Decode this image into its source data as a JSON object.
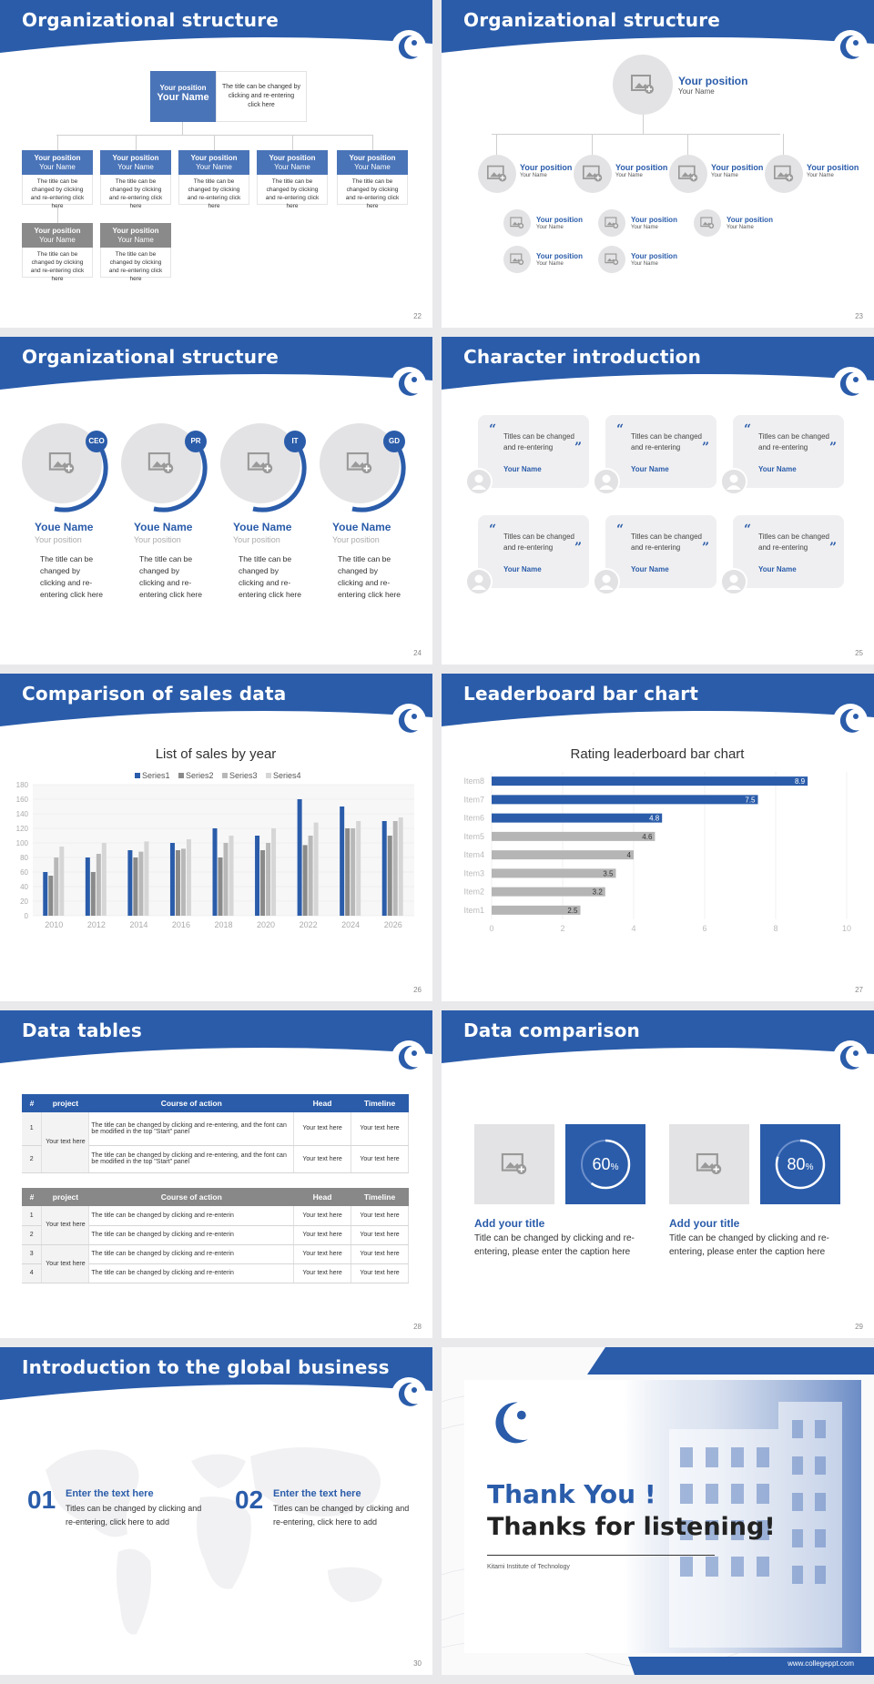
{
  "colors": {
    "brand": "#2a5caa",
    "light_blue": "#4a74b8",
    "gray": "#8a8a8a",
    "circle_gray": "#e3e3e5"
  },
  "slide1": {
    "title": "Organizational structure",
    "page": "22",
    "top": {
      "position": "Your position",
      "name": "Your Name",
      "desc": "The title can be changed by clicking and re-entering click here"
    },
    "boxes": [
      {
        "position": "Your position",
        "name": "Your Name",
        "desc": "The title can be changed by clicking and re-entering click here"
      },
      {
        "position": "Your position",
        "name": "Your Name",
        "desc": "The title can be changed by clicking and re-entering click here"
      },
      {
        "position": "Your position",
        "name": "Your Name",
        "desc": "The title can be changed by clicking and re-entering click here"
      },
      {
        "position": "Your position",
        "name": "Your Name",
        "desc": "The title can be changed by clicking and re-entering click here"
      },
      {
        "position": "Your position",
        "name": "Your Name",
        "desc": "The title can be changed by clicking and re-entering click here"
      },
      {
        "position": "Your position",
        "name": "Your Name",
        "desc": "The title can be changed by clicking and re-entering click here"
      },
      {
        "position": "Your position",
        "name": "Your Name",
        "desc": "The title can be changed by clicking and re-entering click here"
      }
    ]
  },
  "slide2": {
    "title": "Organizational structure",
    "page": "23",
    "top": {
      "position": "Your position",
      "name": "Your Name"
    },
    "level2": [
      {
        "position": "Your position",
        "name": "Your Name"
      },
      {
        "position": "Your position",
        "name": "Your Name"
      },
      {
        "position": "Your position",
        "name": "Your Name"
      },
      {
        "position": "Your position",
        "name": "Your Name"
      }
    ],
    "level3": [
      {
        "position": "Your position",
        "name": "Your Name"
      },
      {
        "position": "Your position",
        "name": "Your Name"
      },
      {
        "position": "Your position",
        "name": "Your Name"
      },
      {
        "position": "Your position",
        "name": "Your Name"
      },
      {
        "position": "Your position",
        "name": "Your Name"
      }
    ]
  },
  "slide3": {
    "title": "Organizational structure",
    "page": "24",
    "people": [
      {
        "badge": "CEO",
        "name": "Youe Name",
        "position": "Your position",
        "desc": "The title can be changed by clicking and re-entering click here"
      },
      {
        "badge": "PR",
        "name": "Youe Name",
        "position": "Your position",
        "desc": "The title can be changed by clicking and re-entering click here"
      },
      {
        "badge": "IT",
        "name": "Youe Name",
        "position": "Your position",
        "desc": "The title can be changed by clicking and re-entering click here"
      },
      {
        "badge": "GD",
        "name": "Youe Name",
        "position": "Your position",
        "desc": "The title can be changed by clicking and re-entering click here"
      }
    ]
  },
  "slide4": {
    "title": "Character introduction",
    "page": "25",
    "cards": [
      {
        "text": "Titles can be changed and re-entering",
        "name": "Your Name"
      },
      {
        "text": "Titles can be changed and re-entering",
        "name": "Your Name"
      },
      {
        "text": "Titles can be changed and re-entering",
        "name": "Your Name"
      },
      {
        "text": "Titles can be changed and re-entering",
        "name": "Your Name"
      },
      {
        "text": "Titles can be changed and re-entering",
        "name": "Your Name"
      },
      {
        "text": "Titles can be changed and re-entering",
        "name": "Your Name"
      }
    ]
  },
  "slide5": {
    "title": "Comparison of sales data",
    "page": "26"
  },
  "slide6": {
    "title": "Leaderboard bar chart",
    "page": "27"
  },
  "slide7": {
    "title": "Data tables",
    "page": "28",
    "table1": {
      "headers": [
        "#",
        "project",
        "Course of action",
        "Head",
        "Timeline"
      ],
      "project": "Your text here",
      "rows": [
        {
          "n": "1",
          "action": "The title can be changed by clicking and re-entering, and the font can be modified in the top \"Start\" panel",
          "head": "Your text here",
          "timeline": "Your text here"
        },
        {
          "n": "2",
          "action": "The title can be changed by clicking and re-entering, and the font can be modified in the top \"Start\" panel",
          "head": "Your text here",
          "timeline": "Your text here"
        }
      ]
    },
    "table2": {
      "headers": [
        "#",
        "project",
        "Course of action",
        "Head",
        "Timeline"
      ],
      "project_a": "Your text here",
      "project_b": "Your text here",
      "rows": [
        {
          "n": "1",
          "action": "The title can be changed by clicking and re-enterin",
          "head": "Your text here",
          "timeline": "Your text here"
        },
        {
          "n": "2",
          "action": "The title can be changed by clicking and re-enterin",
          "head": "Your text here",
          "timeline": "Your text here"
        },
        {
          "n": "3",
          "action": "The title can be changed by clicking and re-enterin",
          "head": "Your text here",
          "timeline": "Your text here"
        },
        {
          "n": "4",
          "action": "The title can be changed by clicking and re-enterin",
          "head": "Your text here",
          "timeline": "Your text here"
        }
      ]
    }
  },
  "slide8": {
    "title": "Data comparison",
    "page": "29",
    "items": [
      {
        "percent": "60",
        "unit": "%",
        "title": "Add your title",
        "text": "Title can be changed by clicking and re-entering, please enter the caption here"
      },
      {
        "percent": "80",
        "unit": "%",
        "title": "Add your title",
        "text": "Title can be changed by clicking and re-entering, please enter the caption here"
      }
    ]
  },
  "slide9": {
    "title": "Introduction to the global business",
    "page": "30",
    "items": [
      {
        "num": "01",
        "title": "Enter the text here",
        "text": "Titles can be changed by clicking and re-entering, click here to add"
      },
      {
        "num": "02",
        "title": "Enter the text here",
        "text": "Titles can be changed by clicking and re-entering, click here to add"
      }
    ]
  },
  "slide10": {
    "line1": "Thank You !",
    "line2": "Thanks for listening!",
    "institute": "Kitami Institute of Technology",
    "url": "www.collegeppt.com"
  },
  "chart_data": [
    {
      "type": "bar",
      "title": "List of sales by year",
      "categories": [
        "2010",
        "2012",
        "2014",
        "2016",
        "2018",
        "2020",
        "2022",
        "2024",
        "2026"
      ],
      "ylim": [
        0,
        180
      ],
      "yticks": [
        "0",
        "20",
        "40",
        "60",
        "80",
        "100",
        "120",
        "140",
        "160",
        "180"
      ],
      "series": [
        {
          "name": "Series1",
          "color": "#2a5caa",
          "values": [
            60,
            80,
            90,
            100,
            120,
            110,
            160,
            150,
            130
          ]
        },
        {
          "name": "Series2",
          "color": "#8a8a8a",
          "values": [
            55,
            60,
            80,
            90,
            80,
            90,
            97,
            120,
            110
          ]
        },
        {
          "name": "Series3",
          "color": "#b8b8b8",
          "values": [
            80,
            85,
            88,
            92,
            100,
            100,
            110,
            120,
            130
          ]
        },
        {
          "name": "Series4",
          "color": "#d6d6d6",
          "values": [
            95,
            100,
            102,
            105,
            110,
            120,
            128,
            130,
            135
          ]
        }
      ],
      "legend": "top"
    },
    {
      "type": "bar",
      "orientation": "horizontal",
      "title": "Rating leaderboard bar chart",
      "categories": [
        "Item8",
        "Item7",
        "Item6",
        "Item5",
        "Item4",
        "Item3",
        "Item2",
        "Item1"
      ],
      "values": [
        8.9,
        7.5,
        4.8,
        4.6,
        4,
        3.5,
        3.2,
        2.5
      ],
      "value_labels": [
        "8.9",
        "7.5",
        "4.8",
        "4.6",
        "4",
        "3.5",
        "3.2",
        "2.5"
      ],
      "colors": [
        "#2a5caa",
        "#2a5caa",
        "#2a5caa",
        "#b5b5b5",
        "#b5b5b5",
        "#b5b5b5",
        "#b5b5b5",
        "#b5b5b5"
      ],
      "xlim": [
        0,
        10
      ],
      "xticks": [
        "0",
        "2",
        "4",
        "6",
        "8",
        "10"
      ]
    }
  ]
}
